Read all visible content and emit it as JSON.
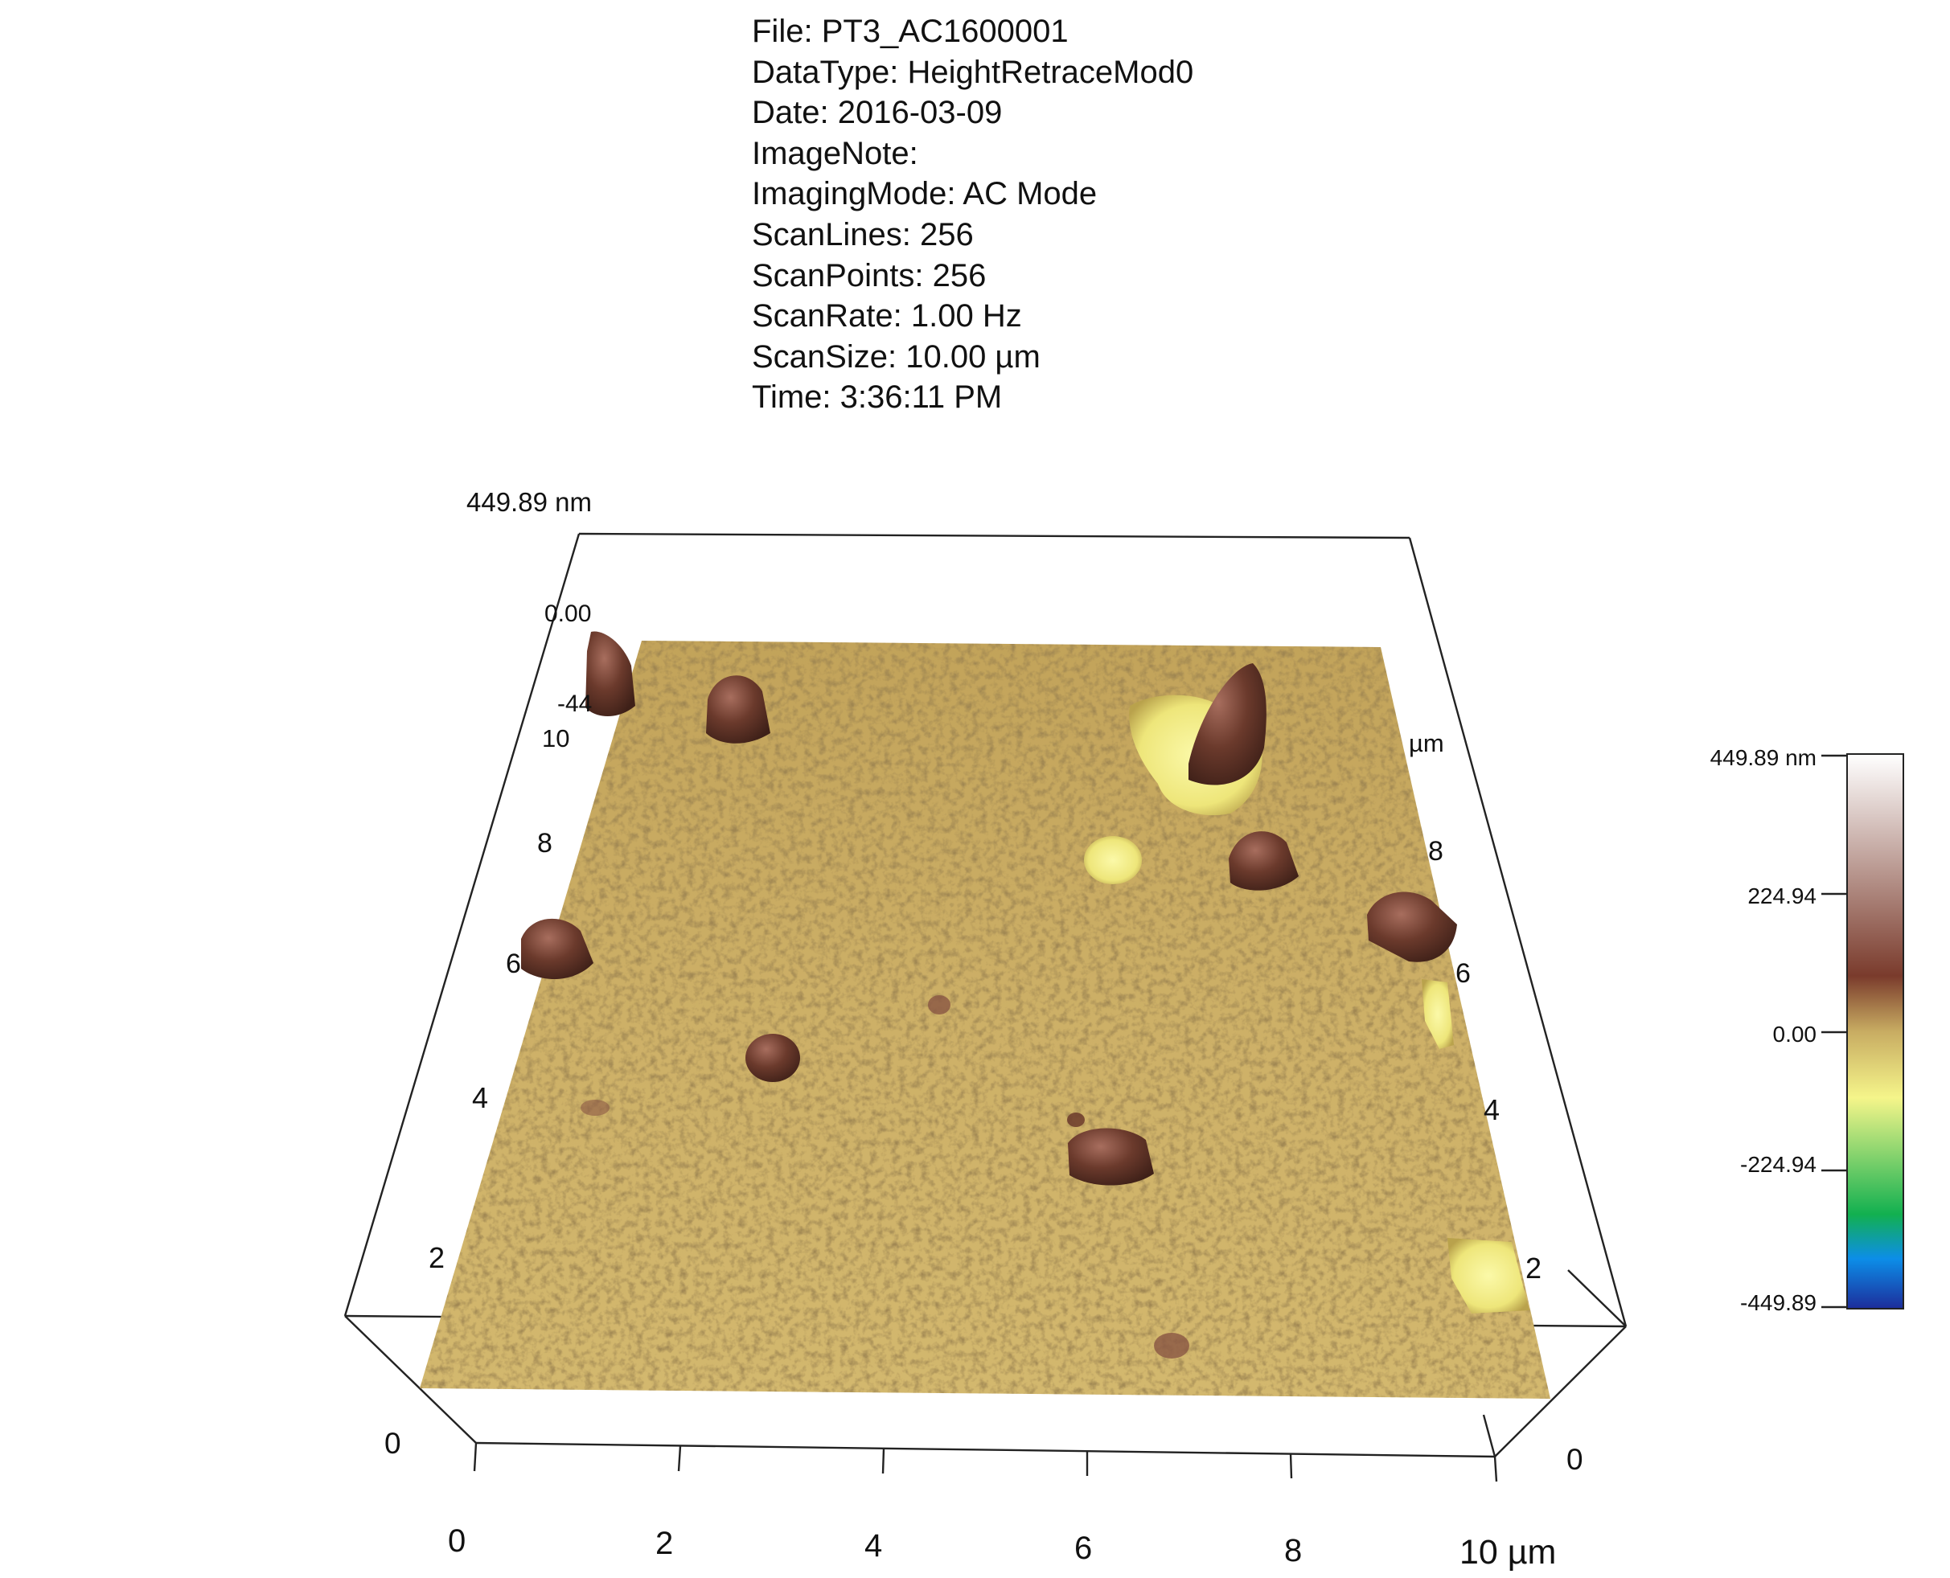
{
  "metadata": [
    {
      "key": "File",
      "value": "PT3_AC1600001"
    },
    {
      "key": "DataType",
      "value": "HeightRetraceMod0"
    },
    {
      "key": "Date",
      "value": "2016-03-09"
    },
    {
      "key": "ImageNote",
      "value": ""
    },
    {
      "key": "ImagingMode",
      "value": "AC Mode"
    },
    {
      "key": "ScanLines",
      "value": "256"
    },
    {
      "key": "ScanPoints",
      "value": "256"
    },
    {
      "key": "ScanRate",
      "value": "1.00 Hz"
    },
    {
      "key": "ScanSize",
      "value": "10.00 µm"
    },
    {
      "key": "Time",
      "value": "3:36:11 PM"
    }
  ],
  "plot": {
    "z_top_label": "449.89 nm",
    "z_ticks": [
      "0.00",
      "-44"
    ],
    "x_ticks": [
      "0",
      "2",
      "4",
      "6",
      "8",
      "10 µm"
    ],
    "y_ticks_left": [
      "0",
      "2",
      "4",
      "6",
      "8",
      "10"
    ],
    "y_ticks_right": [
      "0",
      "2",
      "4",
      "6",
      "8"
    ],
    "y_unit_right": "µm"
  },
  "colorbar": {
    "labels": [
      "449.89 nm",
      "224.94",
      "0.00",
      "-224.94",
      "-449.89"
    ],
    "stops": [
      "#ffffff",
      "#7a3b2c",
      "#c8ac62",
      "#f5f58a",
      "#12b050",
      "#0c8ee8",
      "#1d2d9b"
    ]
  },
  "surface": {
    "base_color": "#c9ad62",
    "particle_color": "#6b3a2c",
    "pit_color": "#f4f088"
  }
}
